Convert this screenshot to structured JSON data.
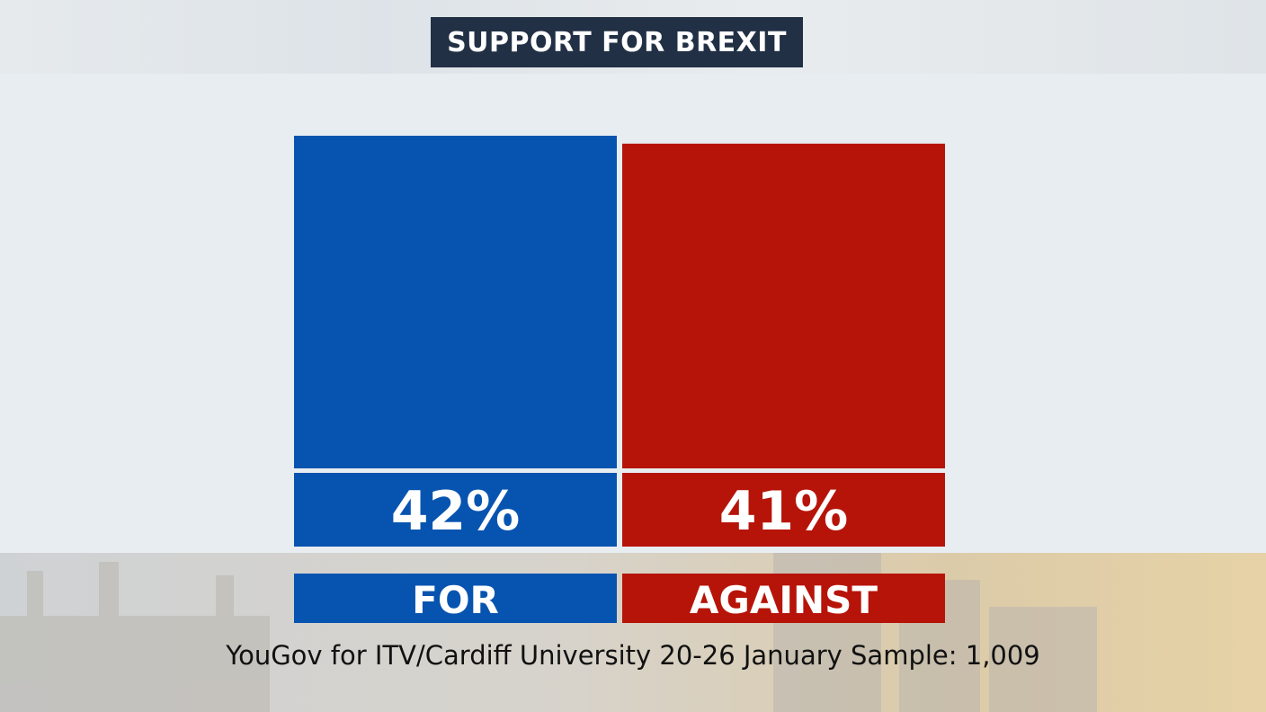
{
  "title": "SUPPORT FOR BREXIT",
  "source": "YouGov for ITV/Cardiff University 20-26 January Sample: 1,009",
  "chart_data": {
    "type": "bar",
    "title": "SUPPORT FOR BREXIT",
    "categories": [
      "FOR",
      "AGAINST"
    ],
    "values": [
      42,
      41
    ],
    "value_labels": [
      "42%",
      "41%"
    ],
    "colors": [
      "#0754b0",
      "#b71409"
    ],
    "grid": false,
    "legend": "none"
  }
}
